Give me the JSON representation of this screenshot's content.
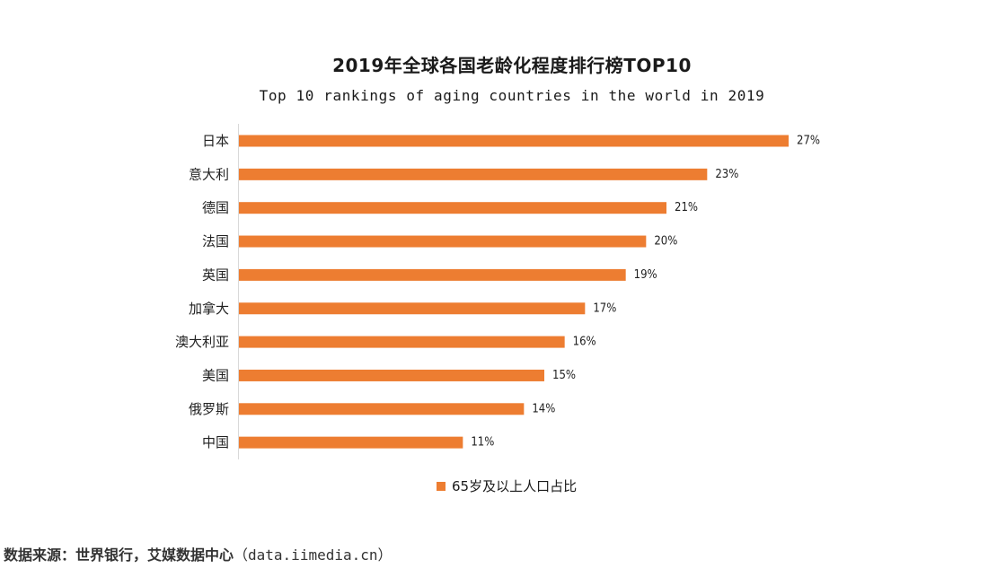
{
  "chart_data": {
    "type": "bar",
    "orientation": "horizontal",
    "title": "2019年全球各国老龄化程度排行榜TOP10",
    "subtitle": "Top 10 rankings of aging countries in the world in 2019",
    "categories": [
      "日本",
      "意大利",
      "德国",
      "法国",
      "英国",
      "加拿大",
      "澳大利亚",
      "美国",
      "俄罗斯",
      "中国"
    ],
    "series": [
      {
        "name": "65岁及以上人口占比",
        "values": [
          27,
          23,
          21,
          20,
          19,
          17,
          16,
          15,
          14,
          11
        ],
        "labels": [
          "27%",
          "23%",
          "21%",
          "20%",
          "19%",
          "17%",
          "16%",
          "15%",
          "14%",
          "11%"
        ]
      }
    ],
    "xlim": [
      0,
      27
    ],
    "grid": false,
    "legend_position": "bottom",
    "bar_color": "#ED7D31"
  },
  "source": {
    "prefix": "数据来源：世界银行，艾媒数据中心",
    "url": "（data.iimedia.cn）"
  }
}
